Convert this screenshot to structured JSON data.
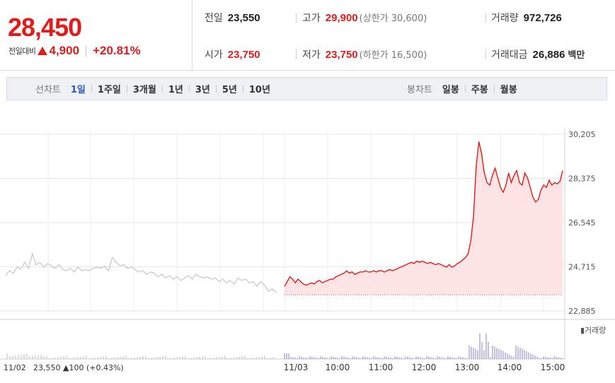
{
  "header": {
    "current_price": "28,450",
    "change_label": "전일대비",
    "change_amount": "4,900",
    "change_percent": "+20.81%",
    "prev_close_label": "전일",
    "prev_close": "23,550",
    "high_label": "고가",
    "high": "29,900",
    "upper_limit": "(상한가 30,600)",
    "volume_label": "거래량",
    "volume": "972,726",
    "open_label": "시가",
    "open": "23,750",
    "low_label": "저가",
    "low": "23,750",
    "lower_limit": "(하한가 16,500)",
    "amount_label": "거래대금",
    "amount": "26,886",
    "amount_unit": "백만"
  },
  "tabs": {
    "line_label": "선차트",
    "line_tabs": [
      "1일",
      "1주일",
      "3개월",
      "1년",
      "3년",
      "5년",
      "10년"
    ],
    "active": "1일",
    "candle_label": "봉차트",
    "candle_tabs": [
      "일봉",
      "주봉",
      "월봉"
    ]
  },
  "colors": {
    "up": "#e21b1b",
    "active_tab": "#2a57b8",
    "volume": "#8a80c0",
    "prev_line": "#c9c9c9"
  },
  "chart_data": {
    "type": "area",
    "y_ticks": [
      "30,205",
      "28,375",
      "26,545",
      "24,715",
      "22,885"
    ],
    "ylim": [
      22885,
      30205
    ],
    "x_ticks": [
      "11/03",
      "10:00",
      "11:00",
      "12:00",
      "13:00",
      "14:00",
      "15:00"
    ],
    "prev_day_label": "11/02",
    "prev_day_summary": "23,550 ▲100 (+0.43%)",
    "reference_price": 23550,
    "volume_legend": "거래량",
    "series": [
      {
        "name": "11/02",
        "values": [
          24350,
          24550,
          24450,
          24700,
          24620,
          24900,
          24650,
          25250,
          24800,
          24900,
          24700,
          24850,
          24750,
          24650,
          24800,
          24600,
          24550,
          24650,
          24500,
          24700,
          24550,
          24600,
          24550,
          24650,
          24700,
          24650,
          24750,
          24550,
          25100,
          24900,
          24750,
          24800,
          24650,
          24700,
          24600,
          24500,
          24550,
          24400,
          24500,
          24450,
          24300,
          24400,
          24250,
          24350,
          24200,
          24300,
          24150,
          24250,
          24350,
          24200,
          24400,
          24300,
          24250,
          24300,
          24200,
          24250,
          24100,
          24200,
          24050,
          24150,
          24000,
          24250,
          24150,
          24200,
          24050,
          24100,
          23900,
          24100,
          23950,
          23700,
          23800,
          23650
        ]
      },
      {
        "name": "11/03",
        "values": [
          23900,
          24100,
          24300,
          24200,
          24050,
          24200,
          24100,
          24000,
          23950,
          24000,
          24050,
          24000,
          24100,
          24150,
          24050,
          24100,
          24150,
          24200,
          24200,
          24300,
          24350,
          24400,
          24450,
          24550,
          24450,
          24500,
          24400,
          24450,
          24500,
          24500,
          24550,
          24500,
          24500,
          24550,
          24500,
          24550,
          24550,
          24500,
          24550,
          24600,
          24550,
          24600,
          24650,
          24700,
          24750,
          24800,
          24850,
          24900,
          24850,
          24950,
          24900,
          24950,
          24900,
          24850,
          24900,
          24850,
          24800,
          24850,
          24800,
          24750,
          24700,
          24800,
          24700,
          24750,
          24850,
          24900,
          25000,
          25100,
          25250,
          25800,
          26800,
          28900,
          29900,
          29400,
          28600,
          28200,
          28100,
          28500,
          28800,
          28400,
          28000,
          27800,
          28100,
          28600,
          28200,
          28500,
          28700,
          28200,
          28100,
          28600,
          28400,
          28000,
          27600,
          27400,
          27500,
          27900,
          28100,
          28000,
          28300,
          28100,
          28200,
          28150,
          28250,
          28700
        ]
      }
    ]
  }
}
